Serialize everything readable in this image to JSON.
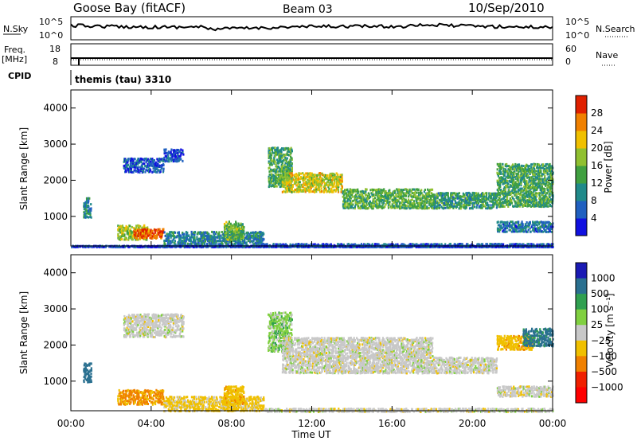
{
  "header": {
    "station": "Goose Bay (fitACF)",
    "beam": "Beam 03",
    "date": "10/Sep/2010"
  },
  "status_panels": {
    "nsky_label": "N.Sky",
    "nsky_ticks": [
      "10^5",
      "10^0"
    ],
    "nsearch_label": "N.Search",
    "nsearch_ticks": [
      "10^5",
      "10^0"
    ],
    "freq_label_1": "Freq.",
    "freq_label_2": "[MHz]",
    "freq_ticks": [
      "18",
      "8"
    ],
    "nave_label": "Nave",
    "nave_ticks": [
      "60",
      "0"
    ],
    "cpid_label": "CPID",
    "cpid_text": "themis (tau) 3310"
  },
  "chart_data": [
    {
      "type": "heatmap",
      "parameter": "power",
      "ylabel": "Slant Range [km]",
      "ylim": [
        180,
        4500
      ],
      "yticks": [
        "1000",
        "2000",
        "3000",
        "4000"
      ],
      "colorbar": {
        "label": "Power [dB]",
        "range": [
          0,
          32
        ],
        "ticks": [
          "4",
          "8",
          "12",
          "16",
          "20",
          "24",
          "28"
        ],
        "colors": [
          "#1010e0",
          "#2060c0",
          "#208a8a",
          "#40a040",
          "#90c030",
          "#f0c000",
          "#f08000",
          "#e02000"
        ]
      },
      "echo_regions": [
        {
          "t0": 0.6,
          "t1": 1.0,
          "r0": 1000,
          "r1": 1550,
          "power": 10
        },
        {
          "t0": 2.3,
          "t1": 3.8,
          "r0": 380,
          "r1": 800,
          "power": 18
        },
        {
          "t0": 3.1,
          "t1": 4.6,
          "r0": 420,
          "r1": 700,
          "power": 28
        },
        {
          "t0": 4.6,
          "t1": 9.6,
          "r0": 200,
          "r1": 620,
          "power": 9
        },
        {
          "t0": 7.6,
          "t1": 8.6,
          "r0": 380,
          "r1": 900,
          "power": 16
        },
        {
          "t0": 2.6,
          "t1": 4.6,
          "r0": 2250,
          "r1": 2650,
          "power": 6
        },
        {
          "t0": 4.6,
          "t1": 5.6,
          "r0": 2550,
          "r1": 2900,
          "power": 5
        },
        {
          "t0": 9.8,
          "t1": 11.0,
          "r0": 1850,
          "r1": 2950,
          "power": 14
        },
        {
          "t0": 10.5,
          "t1": 13.5,
          "r0": 1700,
          "r1": 2250,
          "power": 20
        },
        {
          "t0": 13.5,
          "t1": 18.0,
          "r0": 1250,
          "r1": 1800,
          "power": 15
        },
        {
          "t0": 18.0,
          "t1": 21.2,
          "r0": 1250,
          "r1": 1700,
          "power": 12
        },
        {
          "t0": 21.2,
          "t1": 24.0,
          "r0": 1300,
          "r1": 2500,
          "power": 13
        },
        {
          "t0": 21.2,
          "t1": 24.0,
          "r0": 600,
          "r1": 900,
          "power": 8
        },
        {
          "t0": 9.6,
          "t1": 24.0,
          "r0": 180,
          "r1": 280,
          "power": 6
        },
        {
          "t0": 0.0,
          "t1": 24.0,
          "r0": 180,
          "r1": 220,
          "power": 4
        }
      ]
    },
    {
      "type": "heatmap",
      "parameter": "velocity",
      "ylabel": "Slant Range [km]",
      "ylim": [
        180,
        4500
      ],
      "yticks": [
        "1000",
        "2000",
        "3000",
        "4000"
      ],
      "xlabel": "Time UT",
      "xticks": [
        "00:00",
        "04:00",
        "08:00",
        "12:00",
        "16:00",
        "20:00",
        "00:00"
      ],
      "colorbar": {
        "label": "Velocity [m s⁻¹]",
        "ticks": [
          "1000",
          "500",
          "100",
          "25",
          "−25",
          "−100",
          "−500",
          "−1000"
        ],
        "colors": [
          "#1a1ab4",
          "#2a7090",
          "#30a050",
          "#80d040",
          "#c8c8c8",
          "#f0c000",
          "#f08000",
          "#f02000",
          "#ff0000"
        ]
      },
      "echo_regions": [
        {
          "t0": 0.6,
          "t1": 1.0,
          "r0": 1000,
          "r1": 1550,
          "vel": 150
        },
        {
          "t0": 2.3,
          "t1": 4.6,
          "r0": 380,
          "r1": 800,
          "vel": -110
        },
        {
          "t0": 4.6,
          "t1": 9.6,
          "r0": 200,
          "r1": 620,
          "vel": -40
        },
        {
          "t0": 7.6,
          "t1": 8.6,
          "r0": 380,
          "r1": 900,
          "vel": -80
        },
        {
          "t0": 2.6,
          "t1": 5.6,
          "r0": 2250,
          "r1": 2900,
          "vel": 0
        },
        {
          "t0": 9.8,
          "t1": 11.0,
          "r0": 1850,
          "r1": 2950,
          "vel": 40
        },
        {
          "t0": 10.5,
          "t1": 18.0,
          "r0": 1250,
          "r1": 2250,
          "vel": 0
        },
        {
          "t0": 18.0,
          "t1": 21.2,
          "r0": 1250,
          "r1": 1700,
          "vel": 0
        },
        {
          "t0": 21.2,
          "t1": 23.0,
          "r0": 1900,
          "r1": 2300,
          "vel": -80
        },
        {
          "t0": 22.5,
          "t1": 24.0,
          "r0": 2000,
          "r1": 2500,
          "vel": 120
        },
        {
          "t0": 21.2,
          "t1": 24.0,
          "r0": 600,
          "r1": 900,
          "vel": 0
        },
        {
          "t0": 9.6,
          "t1": 24.0,
          "r0": 180,
          "r1": 280,
          "vel": 0
        }
      ]
    }
  ]
}
